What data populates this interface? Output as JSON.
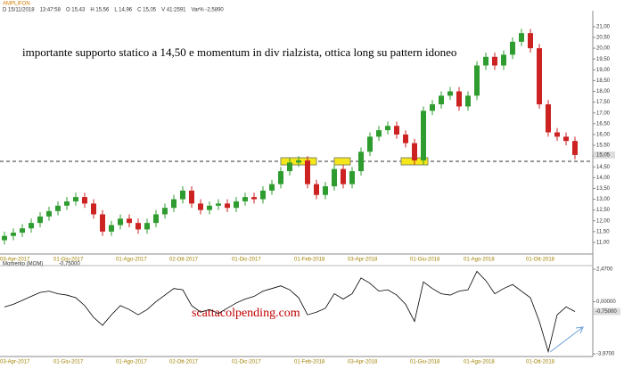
{
  "symbol": "AMPLIFON",
  "quote_info": [
    "D 15/11/2018",
    "13:47:58",
    "O 15,43",
    "H 15,56",
    "L 14,96",
    "C 15,05",
    "V 41:2591",
    "Var% -2,5890"
  ],
  "annotation": "importante supporto statico a 14,50 e momentum in div rialzista, ottica long su pattern idoneo",
  "watermark": "scattacolpending.com",
  "chart_data": [
    {
      "type": "candlestick",
      "last_price_label": "15,05",
      "up_color": "#2e9c2e",
      "down_color": "#cc2222",
      "categories": [
        "03-Apr-2017",
        null,
        null,
        null,
        null,
        null,
        "01-Giu-2017",
        null,
        null,
        null,
        null,
        null,
        null,
        "01-Ago-2017",
        null,
        null,
        null,
        null,
        null,
        "02-Ott-2017",
        null,
        null,
        null,
        null,
        null,
        null,
        "01-Dic-2017",
        null,
        null,
        null,
        null,
        null,
        null,
        "01-Feb-2018",
        null,
        null,
        null,
        null,
        null,
        "03-Apr-2018",
        null,
        null,
        null,
        null,
        null,
        null,
        "01-Giu-2018",
        null,
        null,
        null,
        null,
        null,
        "01-Ago-2018",
        null,
        null,
        null,
        null,
        null,
        null,
        "01-Ott-2018",
        null,
        null,
        null,
        null,
        null
      ],
      "open": [
        11.1,
        11.3,
        11.45,
        11.65,
        11.9,
        12.2,
        12.45,
        12.7,
        12.9,
        13.1,
        12.8,
        12.3,
        11.5,
        11.8,
        12.1,
        11.9,
        11.6,
        11.9,
        12.3,
        12.6,
        13.0,
        13.4,
        12.8,
        12.5,
        12.7,
        12.8,
        12.6,
        12.9,
        13.1,
        13.0,
        13.4,
        13.7,
        14.3,
        14.7,
        14.8,
        13.7,
        13.2,
        13.6,
        14.4,
        13.7,
        14.3,
        15.2,
        15.9,
        16.2,
        16.4,
        16.0,
        15.6,
        14.8,
        17.1,
        17.4,
        17.8,
        18.0,
        17.3,
        17.8,
        19.2,
        19.6,
        19.2,
        19.7,
        20.3,
        20.7,
        20.0,
        17.4,
        16.1,
        15.9,
        15.7
      ],
      "high": [
        11.5,
        11.65,
        11.85,
        12.1,
        12.4,
        12.65,
        12.9,
        13.1,
        13.3,
        13.3,
        13.0,
        12.5,
        12.0,
        12.3,
        12.3,
        12.1,
        12.1,
        12.5,
        12.8,
        13.2,
        13.6,
        13.6,
        13.0,
        12.9,
        13.0,
        13.0,
        13.1,
        13.3,
        13.3,
        13.6,
        13.9,
        14.5,
        14.9,
        15.0,
        15.0,
        13.9,
        13.8,
        14.6,
        14.6,
        14.5,
        15.4,
        16.1,
        16.4,
        16.6,
        16.6,
        16.2,
        15.8,
        17.3,
        17.6,
        18.0,
        18.2,
        18.2,
        18.0,
        19.4,
        19.8,
        19.8,
        19.9,
        20.5,
        20.9,
        20.9,
        20.2,
        17.6,
        16.3,
        16.1,
        15.9
      ],
      "low": [
        10.9,
        11.1,
        11.25,
        11.45,
        11.7,
        12.0,
        12.25,
        12.5,
        12.7,
        12.6,
        12.1,
        11.3,
        11.3,
        11.6,
        11.7,
        11.4,
        11.4,
        11.7,
        12.1,
        12.4,
        12.8,
        12.6,
        12.3,
        12.3,
        12.5,
        12.4,
        12.4,
        12.7,
        12.8,
        12.8,
        13.2,
        13.5,
        14.1,
        14.5,
        13.5,
        13.0,
        13.0,
        13.4,
        13.5,
        13.5,
        14.1,
        15.0,
        15.7,
        16.0,
        15.8,
        15.4,
        14.6,
        14.6,
        16.9,
        17.2,
        17.6,
        17.1,
        17.1,
        17.6,
        19.0,
        19.0,
        19.0,
        19.5,
        20.1,
        19.8,
        17.2,
        15.9,
        15.7,
        15.5,
        14.85
      ],
      "close": [
        11.3,
        11.45,
        11.65,
        11.9,
        12.2,
        12.45,
        12.7,
        12.9,
        13.1,
        12.8,
        12.3,
        11.5,
        11.8,
        12.1,
        11.9,
        11.6,
        11.9,
        12.3,
        12.6,
        13.0,
        13.4,
        12.8,
        12.5,
        12.7,
        12.8,
        12.6,
        12.9,
        13.1,
        13.0,
        13.4,
        13.7,
        14.3,
        14.7,
        14.8,
        13.7,
        13.2,
        13.6,
        14.4,
        13.7,
        14.3,
        15.2,
        15.9,
        16.2,
        16.4,
        16.0,
        15.6,
        14.8,
        17.1,
        17.4,
        17.8,
        18.0,
        17.3,
        17.8,
        19.2,
        19.6,
        19.2,
        19.7,
        20.3,
        20.7,
        20.0,
        17.4,
        16.1,
        15.9,
        15.7,
        15.05
      ],
      "ylim": [
        10.46,
        21.74
      ],
      "yticks": [
        {
          "value": 11,
          "label": "11,00"
        },
        {
          "value": 11.5,
          "label": "11,50"
        },
        {
          "value": 12,
          "label": "12,00"
        },
        {
          "value": 12.5,
          "label": "12,50"
        },
        {
          "value": 13,
          "label": "13,00"
        },
        {
          "value": 13.5,
          "label": "13,50"
        },
        {
          "value": 14,
          "label": "14,00"
        },
        {
          "value": 14.5,
          "label": "14,50"
        },
        {
          "value": 15,
          "label": "15,00"
        },
        {
          "value": 15.5,
          "label": "15,50"
        },
        {
          "value": 16,
          "label": "16,00"
        },
        {
          "value": 16.5,
          "label": "16,50"
        },
        {
          "value": 17,
          "label": "17,00"
        },
        {
          "value": 17.5,
          "label": "17,50"
        },
        {
          "value": 18,
          "label": "18,00"
        },
        {
          "value": 18.5,
          "label": "18,50"
        },
        {
          "value": 19,
          "label": "19,00"
        },
        {
          "value": 19.5,
          "label": "19,50"
        },
        {
          "value": 20,
          "label": "20,00"
        },
        {
          "value": 20.5,
          "label": "20,50"
        },
        {
          "value": 21,
          "label": "21,00"
        }
      ]
    },
    {
      "type": "line",
      "title": "Momento (MOM)",
      "color": "#000000",
      "values": [
        -0.4,
        -0.2,
        0.1,
        0.4,
        0.7,
        0.8,
        0.6,
        0.5,
        0.3,
        -0.3,
        -1.2,
        -1.8,
        -1.0,
        -0.3,
        -0.6,
        -1.0,
        -0.6,
        0.0,
        0.5,
        1.0,
        0.9,
        -0.3,
        -0.8,
        -0.6,
        -0.9,
        -0.5,
        -0.1,
        0.2,
        0.4,
        0.8,
        1.0,
        1.2,
        0.9,
        0.3,
        -1.0,
        -0.8,
        -0.5,
        0.6,
        0.2,
        0.6,
        1.8,
        1.4,
        0.8,
        0.9,
        0.5,
        -0.2,
        -1.5,
        1.5,
        1.0,
        0.6,
        0.5,
        0.8,
        0.9,
        2.3,
        1.6,
        0.6,
        1.0,
        1.3,
        0.8,
        0.3,
        -1.5,
        -3.8,
        -1.0,
        -0.4,
        -0.75
      ],
      "value_labels": [
        null,
        null,
        null,
        null,
        null,
        null,
        null,
        null,
        null,
        null,
        null,
        null,
        null,
        null,
        null,
        null,
        null,
        null,
        null,
        null,
        null,
        null,
        null,
        null,
        null,
        null,
        null,
        null,
        null,
        null,
        null,
        null,
        null,
        null,
        null,
        null,
        null,
        null,
        null,
        null,
        null,
        null,
        null,
        null,
        null,
        null,
        null,
        null,
        null,
        null,
        null,
        null,
        null,
        null,
        null,
        null,
        null,
        null,
        null,
        null,
        null,
        null,
        null,
        null,
        "-0,75000"
      ],
      "ylim": [
        -4.17,
        2.74
      ],
      "yticks": [
        {
          "value": 2.47,
          "label": "2,4700"
        },
        {
          "value": 0,
          "label": "0,00000"
        },
        {
          "value": -3.97,
          "label": "-3,9700"
        }
      ]
    }
  ]
}
